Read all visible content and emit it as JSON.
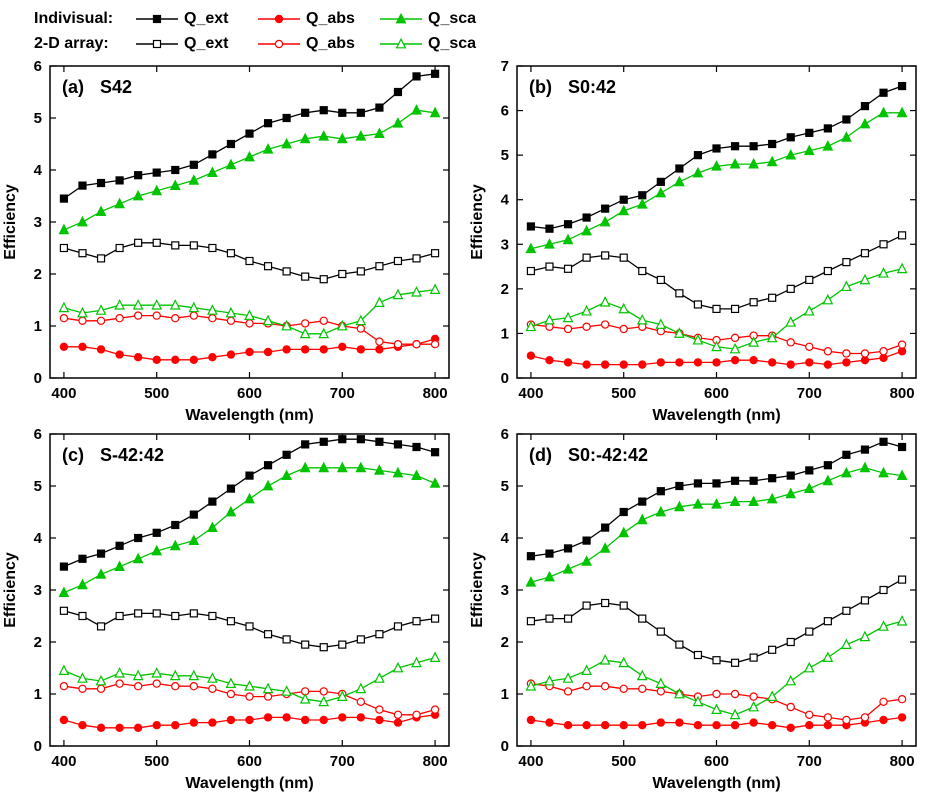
{
  "colors": {
    "ext": "#000000",
    "abs": "#ff0000",
    "sca": "#00c400"
  },
  "legend": {
    "rows": [
      {
        "label": "Indivisual:",
        "items": [
          {
            "label": "Q_ext",
            "key": "ext",
            "marker": "square",
            "filled": true
          },
          {
            "label": "Q_abs",
            "key": "abs",
            "marker": "circle",
            "filled": true
          },
          {
            "label": "Q_sca",
            "key": "sca",
            "marker": "triangle",
            "filled": true
          }
        ]
      },
      {
        "label": "2-D array:",
        "items": [
          {
            "label": "Q_ext",
            "key": "ext",
            "marker": "square",
            "filled": false
          },
          {
            "label": "Q_abs",
            "key": "abs",
            "marker": "circle",
            "filled": false
          },
          {
            "label": "Q_sca",
            "key": "sca",
            "marker": "triangle",
            "filled": false
          }
        ]
      }
    ]
  },
  "chart_data": [
    {
      "type": "line",
      "panel_label": "(a)",
      "title": "S42",
      "xlabel": "Wavelength (nm)",
      "ylabel": "Efficiency",
      "xlim": [
        385,
        815
      ],
      "ylim": [
        0,
        6
      ],
      "xticks": [
        400,
        500,
        600,
        700,
        800
      ],
      "yticks": [
        0,
        1,
        2,
        3,
        4,
        5,
        6
      ],
      "x": [
        400,
        420,
        440,
        460,
        480,
        500,
        520,
        540,
        560,
        580,
        600,
        620,
        640,
        660,
        680,
        700,
        720,
        740,
        760,
        780,
        800
      ],
      "series": [
        {
          "group": "Individual",
          "name": "Q_ext",
          "key": "ext",
          "marker": "square",
          "filled": true,
          "values": [
            3.45,
            3.7,
            3.75,
            3.8,
            3.9,
            3.95,
            4.0,
            4.1,
            4.3,
            4.5,
            4.7,
            4.9,
            5.0,
            5.1,
            5.15,
            5.1,
            5.1,
            5.2,
            5.5,
            5.8,
            5.85
          ]
        },
        {
          "group": "Individual",
          "name": "Q_abs",
          "key": "abs",
          "marker": "circle",
          "filled": true,
          "values": [
            0.6,
            0.6,
            0.55,
            0.45,
            0.4,
            0.35,
            0.35,
            0.35,
            0.4,
            0.45,
            0.5,
            0.5,
            0.55,
            0.55,
            0.55,
            0.6,
            0.55,
            0.55,
            0.6,
            0.65,
            0.75
          ]
        },
        {
          "group": "Individual",
          "name": "Q_sca",
          "key": "sca",
          "marker": "triangle",
          "filled": true,
          "values": [
            2.85,
            3.0,
            3.2,
            3.35,
            3.5,
            3.6,
            3.7,
            3.8,
            3.95,
            4.1,
            4.25,
            4.4,
            4.5,
            4.6,
            4.65,
            4.6,
            4.65,
            4.7,
            4.9,
            5.15,
            5.1
          ]
        },
        {
          "group": "2-D array",
          "name": "Q_ext",
          "key": "ext",
          "marker": "square",
          "filled": false,
          "values": [
            2.5,
            2.4,
            2.3,
            2.5,
            2.6,
            2.6,
            2.55,
            2.55,
            2.5,
            2.4,
            2.25,
            2.15,
            2.05,
            1.95,
            1.9,
            2.0,
            2.05,
            2.15,
            2.25,
            2.3,
            2.4
          ]
        },
        {
          "group": "2-D array",
          "name": "Q_abs",
          "key": "abs",
          "marker": "circle",
          "filled": false,
          "values": [
            1.15,
            1.1,
            1.1,
            1.15,
            1.2,
            1.2,
            1.15,
            1.2,
            1.15,
            1.1,
            1.05,
            1.05,
            1.0,
            1.05,
            1.1,
            1.0,
            0.95,
            0.7,
            0.65,
            0.65,
            0.65
          ]
        },
        {
          "group": "2-D array",
          "name": "Q_sca",
          "key": "sca",
          "marker": "triangle",
          "filled": false,
          "values": [
            1.35,
            1.25,
            1.3,
            1.4,
            1.4,
            1.4,
            1.4,
            1.35,
            1.3,
            1.25,
            1.2,
            1.1,
            1.0,
            0.85,
            0.85,
            1.0,
            1.1,
            1.45,
            1.6,
            1.65,
            1.7
          ]
        }
      ]
    },
    {
      "type": "line",
      "panel_label": "(b)",
      "title": "S0:42",
      "xlabel": "Wavelength (nm)",
      "ylabel": "Efficiency",
      "xlim": [
        385,
        815
      ],
      "ylim": [
        0,
        7
      ],
      "xticks": [
        400,
        500,
        600,
        700,
        800
      ],
      "yticks": [
        0,
        1,
        2,
        3,
        4,
        5,
        6,
        7
      ],
      "x": [
        400,
        420,
        440,
        460,
        480,
        500,
        520,
        540,
        560,
        580,
        600,
        620,
        640,
        660,
        680,
        700,
        720,
        740,
        760,
        780,
        800
      ],
      "series": [
        {
          "group": "Individual",
          "name": "Q_ext",
          "key": "ext",
          "marker": "square",
          "filled": true,
          "values": [
            3.4,
            3.35,
            3.45,
            3.6,
            3.8,
            4.0,
            4.1,
            4.4,
            4.7,
            5.0,
            5.15,
            5.2,
            5.2,
            5.25,
            5.4,
            5.5,
            5.6,
            5.8,
            6.1,
            6.4,
            6.55
          ]
        },
        {
          "group": "Individual",
          "name": "Q_abs",
          "key": "abs",
          "marker": "circle",
          "filled": true,
          "values": [
            0.5,
            0.4,
            0.35,
            0.3,
            0.3,
            0.3,
            0.3,
            0.35,
            0.35,
            0.35,
            0.35,
            0.4,
            0.4,
            0.35,
            0.3,
            0.35,
            0.3,
            0.35,
            0.4,
            0.45,
            0.6
          ]
        },
        {
          "group": "Individual",
          "name": "Q_sca",
          "key": "sca",
          "marker": "triangle",
          "filled": true,
          "values": [
            2.9,
            3.0,
            3.1,
            3.3,
            3.5,
            3.75,
            3.9,
            4.15,
            4.4,
            4.6,
            4.75,
            4.8,
            4.8,
            4.85,
            5.0,
            5.1,
            5.2,
            5.4,
            5.7,
            5.95,
            5.95
          ]
        },
        {
          "group": "2-D array",
          "name": "Q_ext",
          "key": "ext",
          "marker": "square",
          "filled": false,
          "values": [
            2.4,
            2.5,
            2.45,
            2.7,
            2.75,
            2.7,
            2.4,
            2.2,
            1.9,
            1.65,
            1.55,
            1.55,
            1.7,
            1.8,
            2.0,
            2.2,
            2.4,
            2.6,
            2.8,
            3.0,
            3.2
          ]
        },
        {
          "group": "2-D array",
          "name": "Q_abs",
          "key": "abs",
          "marker": "circle",
          "filled": false,
          "values": [
            1.2,
            1.15,
            1.1,
            1.15,
            1.2,
            1.1,
            1.15,
            1.05,
            1.0,
            0.9,
            0.85,
            0.9,
            0.95,
            0.95,
            0.8,
            0.7,
            0.6,
            0.55,
            0.55,
            0.6,
            0.75
          ]
        },
        {
          "group": "2-D array",
          "name": "Q_sca",
          "key": "sca",
          "marker": "triangle",
          "filled": false,
          "values": [
            1.15,
            1.3,
            1.35,
            1.5,
            1.7,
            1.55,
            1.3,
            1.2,
            1.0,
            0.85,
            0.7,
            0.65,
            0.8,
            0.9,
            1.25,
            1.5,
            1.75,
            2.05,
            2.2,
            2.35,
            2.45
          ]
        }
      ]
    },
    {
      "type": "line",
      "panel_label": "(c)",
      "title": "S-42:42",
      "xlabel": "Wavelength (nm)",
      "ylabel": "Efficiency",
      "xlim": [
        385,
        815
      ],
      "ylim": [
        0,
        6
      ],
      "xticks": [
        400,
        500,
        600,
        700,
        800
      ],
      "yticks": [
        0,
        1,
        2,
        3,
        4,
        5,
        6
      ],
      "x": [
        400,
        420,
        440,
        460,
        480,
        500,
        520,
        540,
        560,
        580,
        600,
        620,
        640,
        660,
        680,
        700,
        720,
        740,
        760,
        780,
        800
      ],
      "series": [
        {
          "group": "Individual",
          "name": "Q_ext",
          "key": "ext",
          "marker": "square",
          "filled": true,
          "values": [
            3.45,
            3.6,
            3.7,
            3.85,
            4.0,
            4.1,
            4.25,
            4.45,
            4.7,
            4.95,
            5.2,
            5.4,
            5.6,
            5.8,
            5.85,
            5.9,
            5.9,
            5.85,
            5.8,
            5.75,
            5.65
          ]
        },
        {
          "group": "Individual",
          "name": "Q_abs",
          "key": "abs",
          "marker": "circle",
          "filled": true,
          "values": [
            0.5,
            0.4,
            0.35,
            0.35,
            0.35,
            0.4,
            0.4,
            0.45,
            0.45,
            0.5,
            0.5,
            0.55,
            0.55,
            0.5,
            0.5,
            0.55,
            0.55,
            0.5,
            0.45,
            0.55,
            0.6
          ]
        },
        {
          "group": "Individual",
          "name": "Q_sca",
          "key": "sca",
          "marker": "triangle",
          "filled": true,
          "values": [
            2.95,
            3.1,
            3.3,
            3.45,
            3.6,
            3.75,
            3.85,
            3.95,
            4.2,
            4.5,
            4.75,
            5.0,
            5.2,
            5.35,
            5.35,
            5.35,
            5.35,
            5.3,
            5.25,
            5.2,
            5.05
          ]
        },
        {
          "group": "2-D array",
          "name": "Q_ext",
          "key": "ext",
          "marker": "square",
          "filled": false,
          "values": [
            2.6,
            2.5,
            2.3,
            2.5,
            2.55,
            2.55,
            2.5,
            2.55,
            2.5,
            2.4,
            2.3,
            2.15,
            2.05,
            1.95,
            1.9,
            1.95,
            2.05,
            2.15,
            2.3,
            2.4,
            2.45
          ]
        },
        {
          "group": "2-D array",
          "name": "Q_abs",
          "key": "abs",
          "marker": "circle",
          "filled": false,
          "values": [
            1.15,
            1.1,
            1.1,
            1.2,
            1.15,
            1.2,
            1.15,
            1.15,
            1.1,
            1.0,
            0.95,
            0.95,
            1.0,
            1.05,
            1.05,
            1.0,
            0.85,
            0.7,
            0.6,
            0.6,
            0.7
          ]
        },
        {
          "group": "2-D array",
          "name": "Q_sca",
          "key": "sca",
          "marker": "triangle",
          "filled": false,
          "values": [
            1.45,
            1.3,
            1.25,
            1.4,
            1.35,
            1.4,
            1.35,
            1.35,
            1.3,
            1.2,
            1.15,
            1.1,
            1.05,
            0.9,
            0.85,
            0.95,
            1.1,
            1.3,
            1.5,
            1.6,
            1.7
          ]
        }
      ]
    },
    {
      "type": "line",
      "panel_label": "(d)",
      "title": "S0:-42:42",
      "xlabel": "Wavelength (nm)",
      "ylabel": "Efficiency",
      "xlim": [
        385,
        815
      ],
      "ylim": [
        0,
        6
      ],
      "xticks": [
        400,
        500,
        600,
        700,
        800
      ],
      "yticks": [
        0,
        1,
        2,
        3,
        4,
        5,
        6
      ],
      "x": [
        400,
        420,
        440,
        460,
        480,
        500,
        520,
        540,
        560,
        580,
        600,
        620,
        640,
        660,
        680,
        700,
        720,
        740,
        760,
        780,
        800
      ],
      "series": [
        {
          "group": "Individual",
          "name": "Q_ext",
          "key": "ext",
          "marker": "square",
          "filled": true,
          "values": [
            3.65,
            3.7,
            3.8,
            3.95,
            4.2,
            4.5,
            4.7,
            4.9,
            5.0,
            5.05,
            5.05,
            5.1,
            5.1,
            5.15,
            5.2,
            5.3,
            5.4,
            5.6,
            5.7,
            5.85,
            5.75
          ]
        },
        {
          "group": "Individual",
          "name": "Q_abs",
          "key": "abs",
          "marker": "circle",
          "filled": true,
          "values": [
            0.5,
            0.45,
            0.4,
            0.4,
            0.4,
            0.4,
            0.4,
            0.45,
            0.45,
            0.4,
            0.4,
            0.4,
            0.45,
            0.4,
            0.35,
            0.4,
            0.4,
            0.4,
            0.45,
            0.5,
            0.55
          ]
        },
        {
          "group": "Individual",
          "name": "Q_sca",
          "key": "sca",
          "marker": "triangle",
          "filled": true,
          "values": [
            3.15,
            3.25,
            3.4,
            3.55,
            3.8,
            4.1,
            4.35,
            4.5,
            4.6,
            4.65,
            4.65,
            4.7,
            4.7,
            4.75,
            4.85,
            4.95,
            5.1,
            5.25,
            5.35,
            5.25,
            5.2
          ]
        },
        {
          "group": "2-D array",
          "name": "Q_ext",
          "key": "ext",
          "marker": "square",
          "filled": false,
          "values": [
            2.4,
            2.45,
            2.45,
            2.7,
            2.75,
            2.7,
            2.45,
            2.2,
            1.95,
            1.75,
            1.65,
            1.6,
            1.7,
            1.85,
            2.0,
            2.2,
            2.4,
            2.6,
            2.8,
            3.0,
            3.2
          ]
        },
        {
          "group": "2-D array",
          "name": "Q_abs",
          "key": "abs",
          "marker": "circle",
          "filled": false,
          "values": [
            1.2,
            1.15,
            1.05,
            1.15,
            1.15,
            1.1,
            1.1,
            1.05,
            1.0,
            0.95,
            1.0,
            1.0,
            0.95,
            0.9,
            0.75,
            0.6,
            0.55,
            0.5,
            0.55,
            0.85,
            0.9
          ]
        },
        {
          "group": "2-D array",
          "name": "Q_sca",
          "key": "sca",
          "marker": "triangle",
          "filled": false,
          "values": [
            1.15,
            1.25,
            1.3,
            1.45,
            1.65,
            1.6,
            1.35,
            1.2,
            1.0,
            0.85,
            0.7,
            0.6,
            0.75,
            0.95,
            1.25,
            1.5,
            1.7,
            1.95,
            2.1,
            2.3,
            2.4
          ]
        }
      ]
    }
  ]
}
